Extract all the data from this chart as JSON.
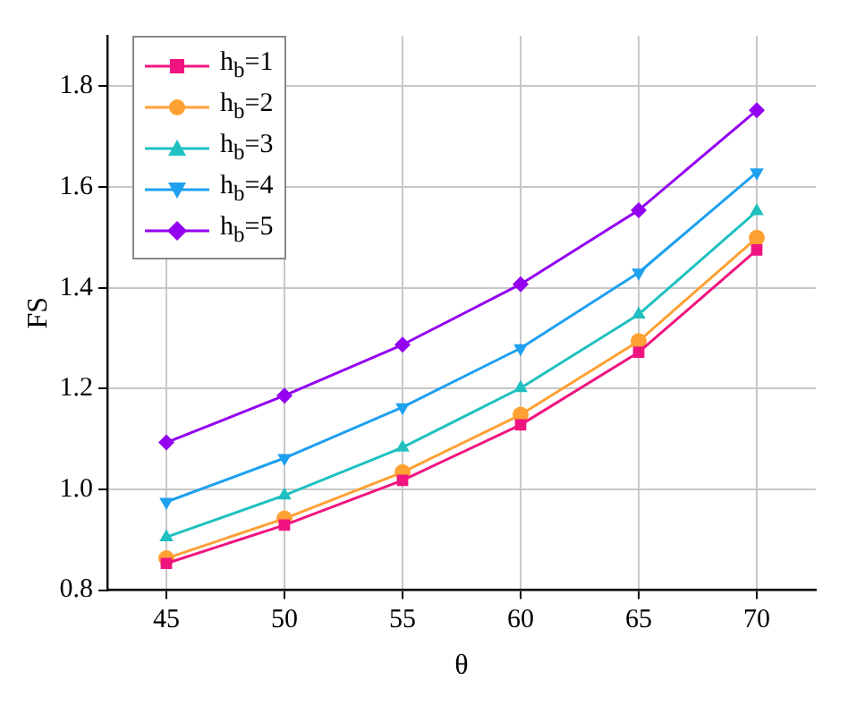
{
  "chart_data": {
    "type": "line",
    "xlabel": "θ",
    "ylabel": "FS",
    "x": [
      45,
      50,
      55,
      60,
      65,
      70
    ],
    "xlim": [
      42.5,
      72.5
    ],
    "xticks": [
      45,
      50,
      55,
      60,
      65,
      70
    ],
    "ylim": [
      0.8,
      1.9
    ],
    "yticks": [
      {
        "value": 0.8,
        "label": "0.8"
      },
      {
        "value": 1.0,
        "label": "1.0"
      },
      {
        "value": 1.2,
        "label": "1.2"
      },
      {
        "value": 1.4,
        "label": "1.4"
      },
      {
        "value": 1.6,
        "label": "1.6"
      },
      {
        "value": 1.8,
        "label": "1.8"
      }
    ],
    "grid": true,
    "legend": "top left",
    "line_style": "solid",
    "series": [
      {
        "name": "h$_{b}$=1",
        "color": "#f01480",
        "marker": "square",
        "values": [
          0.853,
          0.929,
          1.018,
          1.128,
          1.272,
          1.475
        ]
      },
      {
        "name": "h$_{b}$=2",
        "color": "#ffa033",
        "marker": "circle",
        "values": [
          0.863,
          0.942,
          1.034,
          1.148,
          1.294,
          1.499
        ]
      },
      {
        "name": "h$_{b}$=3",
        "color": "#20c0c0",
        "marker": "triangle",
        "values": [
          0.905,
          0.988,
          1.083,
          1.201,
          1.347,
          1.552
        ]
      },
      {
        "name": "h$_{b}$=4",
        "color": "#1ea0f0",
        "marker": "triangle-down",
        "values": [
          0.975,
          1.062,
          1.163,
          1.28,
          1.43,
          1.629
        ]
      },
      {
        "name": "h$_{b}$=5",
        "color": "#9400f0",
        "marker": "diamond",
        "values": [
          1.093,
          1.186,
          1.287,
          1.407,
          1.554,
          1.752
        ]
      }
    ]
  }
}
